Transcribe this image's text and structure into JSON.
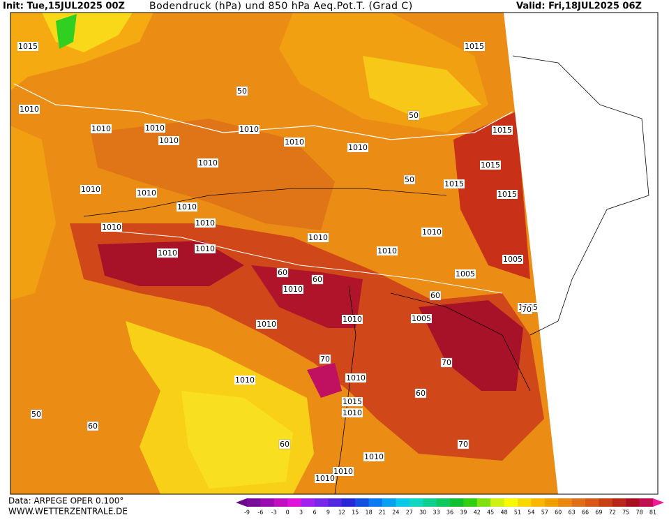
{
  "header": {
    "init": "Init: Tue,15JUL2025 00Z",
    "title": "Bodendruck (hPa) und 850 hPa Aeq.Pot.T. (Grad C)",
    "valid": "Valid: Fri,18JUL2025 06Z"
  },
  "footer": {
    "source": "Data: ARPEGE OPER 0.100°",
    "website": "WWW.WETTERZENTRALE.DE"
  },
  "colorbar": {
    "ticks": [
      -9,
      -6,
      -3,
      0,
      3,
      6,
      9,
      12,
      15,
      18,
      21,
      24,
      27,
      30,
      33,
      36,
      39,
      42,
      45,
      48,
      51,
      54,
      57,
      60,
      63,
      66,
      69,
      72,
      75,
      78,
      81
    ],
    "colors": [
      "#7a0c9c",
      "#9a0cb0",
      "#c010c0",
      "#e014d8",
      "#a020f0",
      "#7828e8",
      "#5028e0",
      "#2828d8",
      "#1450e0",
      "#0a78f0",
      "#0aa0f0",
      "#0ac8e8",
      "#10d8c0",
      "#10d090",
      "#10c860",
      "#10c030",
      "#30d010",
      "#80e010",
      "#d0f010",
      "#f8f800",
      "#f8d800",
      "#f8b800",
      "#f0a000",
      "#e88810",
      "#e07018",
      "#d85818",
      "#c84018",
      "#b82818",
      "#a81020",
      "#c01050"
    ],
    "low_color": "#6a0a8a",
    "high_color": "#f01898"
  },
  "map": {
    "labels": [
      "1015",
      "1010",
      "1010",
      "1010",
      "1010",
      "1010",
      "1010",
      "1010",
      "1010",
      "1010",
      "1010",
      "1010",
      "1010",
      "1010",
      "1010",
      "1010",
      "1010",
      "1010",
      "1010",
      "1015",
      "1015",
      "1015",
      "1015",
      "1015",
      "1005",
      "1005",
      "1005",
      "1005",
      "1010",
      "1010",
      "1010",
      "1015",
      "1010",
      "1010",
      "1010",
      "1010",
      "1010",
      "1010",
      "50",
      "50",
      "50",
      "60",
      "60",
      "60",
      "70",
      "70",
      "70",
      "60",
      "50",
      "60",
      "60",
      "70"
    ]
  }
}
